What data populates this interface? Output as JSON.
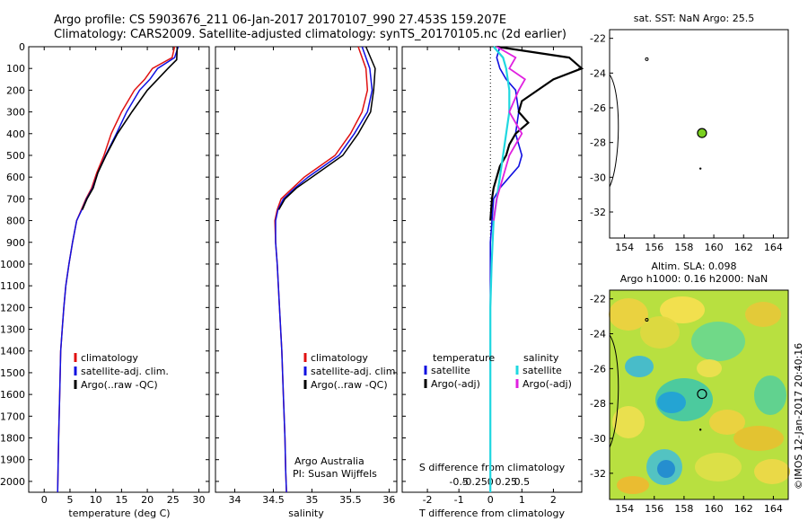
{
  "header": {
    "line1": "Argo profile: CS 5903676_211 06-Jan-2017 20170107_990 27.453S 159.207E",
    "line2": "Climatology: CARS2009. Satellite-adjusted climatology: synTS_20170105.nc (2d earlier)"
  },
  "colors": {
    "climatology": "#e01010",
    "satellite": "#1010e0",
    "argo": "#000000",
    "sal_satellite": "#20d8e0",
    "sal_argo": "#e020e0",
    "float_marker": "#7ad020"
  },
  "depth_axis": {
    "ticks": [
      "0",
      "100",
      "200",
      "300",
      "400",
      "500",
      "600",
      "700",
      "800",
      "900",
      "1000",
      "1100",
      "1200",
      "1300",
      "1400",
      "1500",
      "1600",
      "1700",
      "1800",
      "1900",
      "2000"
    ],
    "range": [
      0,
      2050
    ]
  },
  "panels": {
    "temperature": {
      "xlabel": "temperature (deg C)",
      "xticks": [
        "0",
        "5",
        "10",
        "15",
        "20",
        "25",
        "30"
      ],
      "xrange": [
        -3,
        32
      ],
      "legend": [
        "climatology",
        "satellite-adj. clim.",
        "Argo(..raw -QC)"
      ]
    },
    "salinity": {
      "xlabel": "salinity",
      "xticks": [
        "34",
        "34.5",
        "35",
        "35.5",
        "36"
      ],
      "xrange": [
        33.75,
        36.1
      ],
      "legend": [
        "climatology",
        "satellite-adj. clim.",
        "Argo(..raw -QC)"
      ],
      "note1": "Argo Australia",
      "note2": "PI: Susan Wijffels"
    },
    "difference": {
      "xlabel": "T difference from climatology",
      "slabel": "S difference from climatology",
      "tticks": [
        "-2",
        "-1",
        "0",
        "1",
        "2"
      ],
      "sticks": [
        "-0.5",
        "-0.25",
        "0",
        "0.25",
        "0.5"
      ],
      "xrange": [
        -2.8,
        2.9
      ],
      "legend_temp_title": "temperature",
      "legend_sal_title": "salinity",
      "legend_temp": [
        "satellite",
        "Argo(-adj)"
      ],
      "legend_sal": [
        "satellite",
        "Argo(-adj)"
      ]
    }
  },
  "maps": {
    "sst_title": "sat. SST: NaN Argo: 25.5",
    "sla_title1": "Altim. SLA: 0.098",
    "sla_title2": "Argo h1000: 0.16 h2000: NaN",
    "yticks": [
      "-22",
      "-24",
      "-26",
      "-28",
      "-30",
      "-32"
    ],
    "xticks": [
      "154",
      "156",
      "158",
      "160",
      "162",
      "164"
    ],
    "float_lon": 159.207,
    "float_lat": -27.453
  },
  "credit": "©IMOS 12-Jan-2017 20:40:16",
  "chart_data": [
    {
      "type": "line",
      "title": "",
      "xlabel": "temperature (deg C)",
      "ylabel": "",
      "xlim": [
        -3,
        32
      ],
      "ylim": [
        2050,
        0
      ],
      "series": [
        {
          "name": "climatology",
          "x": [
            25.3,
            24.8,
            21,
            19.5,
            17.5,
            15,
            13,
            11.6,
            10.2,
            9.2,
            8.1,
            7.2,
            6.3,
            5.5,
            4.8,
            4.2,
            3.8,
            3.5,
            3.2,
            3.0,
            2.8,
            2.6
          ],
          "y": [
            0,
            50,
            100,
            150,
            200,
            300,
            400,
            500,
            580,
            650,
            700,
            750,
            800,
            900,
            1000,
            1100,
            1200,
            1300,
            1400,
            1600,
            1800,
            2050
          ]
        },
        {
          "name": "satellite-adj. clim.",
          "x": [
            26,
            25.3,
            22,
            20.5,
            18.5,
            16,
            14,
            11.9,
            10.4,
            9.4,
            8.2,
            7.3,
            6.3,
            5.5,
            4.8,
            4.2,
            3.8,
            3.5,
            3.2,
            3.0,
            2.8,
            2.6
          ],
          "y": [
            0,
            50,
            100,
            150,
            200,
            300,
            400,
            500,
            580,
            650,
            700,
            750,
            800,
            900,
            1000,
            1100,
            1200,
            1300,
            1400,
            1600,
            1800,
            2050
          ]
        },
        {
          "name": "Argo(..raw -QC)",
          "x": [
            25.8,
            25.7,
            24,
            22,
            20,
            17,
            14.2,
            12,
            10.4,
            9.5,
            8.3,
            7.4
          ],
          "y": [
            0,
            60,
            100,
            150,
            200,
            300,
            400,
            500,
            580,
            650,
            700,
            750
          ]
        }
      ]
    },
    {
      "type": "line",
      "title": "",
      "xlabel": "salinity",
      "ylabel": "",
      "xlim": [
        33.75,
        36.1
      ],
      "ylim": [
        2050,
        0
      ],
      "series": [
        {
          "name": "climatology",
          "x": [
            35.6,
            35.7,
            35.72,
            35.65,
            35.5,
            35.3,
            35.1,
            34.9,
            34.75,
            34.6,
            34.55,
            34.52,
            34.53,
            34.55,
            34.58,
            34.61,
            34.63,
            34.65,
            34.66,
            34.67
          ],
          "y": [
            0,
            100,
            200,
            300,
            400,
            500,
            550,
            600,
            650,
            700,
            750,
            800,
            900,
            1000,
            1200,
            1400,
            1600,
            1800,
            1950,
            2050
          ]
        },
        {
          "name": "satellite-adj. clim.",
          "x": [
            35.65,
            35.75,
            35.78,
            35.72,
            35.55,
            35.35,
            35.15,
            34.95,
            34.78,
            34.63,
            34.56,
            34.53,
            34.53,
            34.55,
            34.58,
            34.61,
            34.63,
            34.65,
            34.66,
            34.67
          ],
          "y": [
            0,
            100,
            200,
            300,
            400,
            500,
            550,
            600,
            650,
            700,
            750,
            800,
            900,
            1000,
            1200,
            1400,
            1600,
            1800,
            1950,
            2050
          ]
        },
        {
          "name": "Argo(..raw -QC)",
          "x": [
            35.7,
            35.82,
            35.8,
            35.76,
            35.6,
            35.4,
            35.2,
            35.0,
            34.8,
            34.65,
            34.57
          ],
          "y": [
            0,
            100,
            200,
            300,
            400,
            500,
            550,
            600,
            650,
            700,
            750
          ]
        }
      ]
    },
    {
      "type": "line",
      "title": "",
      "xlabel": "T difference from climatology",
      "ylabel": "",
      "xlim": [
        -2.8,
        2.9
      ],
      "ylim": [
        2050,
        0
      ],
      "series": [
        {
          "name": "temperature satellite",
          "x": [
            0.3,
            0.2,
            0.3,
            0.5,
            0.8,
            0.9,
            0.8,
            1.0,
            0.9,
            0.6,
            0.3,
            0.1,
            0.05,
            0,
            0,
            0,
            0,
            0,
            0,
            0
          ],
          "y": [
            0,
            50,
            100,
            150,
            200,
            300,
            400,
            500,
            550,
            600,
            650,
            700,
            800,
            900,
            1000,
            1200,
            1400,
            1600,
            1800,
            2050
          ]
        },
        {
          "name": "temperature Argo(-adj)",
          "x": [
            0.2,
            2.5,
            2.9,
            2.0,
            1.5,
            1.0,
            0.9,
            1.2,
            0.8,
            0.6,
            0.5,
            0.3,
            0.1,
            0.05,
            0
          ],
          "y": [
            0,
            50,
            100,
            150,
            200,
            250,
            300,
            350,
            400,
            450,
            500,
            550,
            650,
            700,
            800
          ]
        },
        {
          "name": "salinity satellite",
          "x": [
            0.05,
            0.2,
            0.25,
            0.3,
            0.3,
            0.25,
            0.2,
            0.15,
            0.1,
            0.05,
            0.02,
            0,
            0,
            0,
            0
          ],
          "y": [
            0,
            50,
            100,
            200,
            300,
            400,
            500,
            600,
            700,
            800,
            1000,
            1200,
            1500,
            1800,
            2050
          ]
        },
        {
          "name": "salinity Argo(-adj)",
          "x": [
            0.1,
            0.4,
            0.3,
            0.55,
            0.45,
            0.3,
            0.5,
            0.3,
            0.2,
            0.1,
            0.05
          ],
          "y": [
            0,
            50,
            100,
            150,
            200,
            300,
            400,
            500,
            600,
            700,
            800
          ]
        }
      ]
    }
  ]
}
